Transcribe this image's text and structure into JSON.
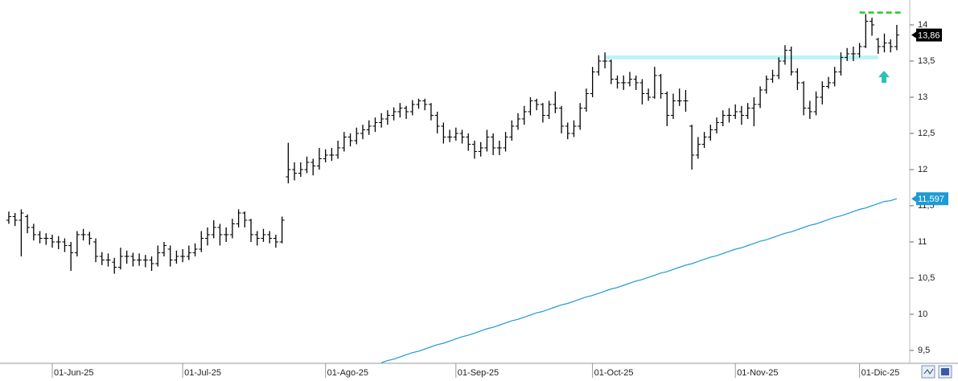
{
  "chart_data": {
    "type": "ohlc",
    "bar_color": "#000000",
    "categories": [
      null,
      null,
      null,
      null,
      null,
      null,
      null,
      "01-Jun-25",
      null,
      null,
      null,
      null,
      null,
      null,
      null,
      null,
      null,
      null,
      null,
      null,
      null,
      null,
      null,
      null,
      null,
      null,
      null,
      null,
      "01-Jul-25",
      null,
      null,
      null,
      null,
      null,
      null,
      null,
      null,
      null,
      null,
      null,
      null,
      null,
      null,
      null,
      null,
      null,
      null,
      null,
      null,
      null,
      null,
      "01-Ago-25",
      null,
      null,
      null,
      null,
      null,
      null,
      null,
      null,
      null,
      null,
      null,
      null,
      null,
      null,
      null,
      null,
      null,
      null,
      null,
      null,
      "01-Sep-25",
      null,
      null,
      null,
      null,
      null,
      null,
      null,
      null,
      null,
      null,
      null,
      null,
      null,
      null,
      null,
      null,
      null,
      null,
      null,
      null,
      null,
      "01-Oct-25",
      null,
      null,
      null,
      null,
      null,
      null,
      null,
      null,
      null,
      null,
      null,
      null,
      null,
      null,
      null,
      null,
      null,
      null,
      null,
      null,
      null,
      null,
      "01-Nov-25",
      null,
      null,
      null,
      null,
      null,
      null,
      null,
      null,
      null,
      null,
      null,
      null,
      null,
      null,
      null,
      null,
      null,
      null,
      null,
      "01-Dic-25",
      null,
      null,
      null,
      null,
      null,
      null
    ],
    "bars": [
      [
        11.3,
        11.42,
        11.25,
        11.35
      ],
      [
        11.35,
        11.4,
        11.22,
        11.3
      ],
      [
        11.3,
        11.45,
        10.8,
        11.4
      ],
      [
        11.35,
        11.38,
        11.12,
        11.2
      ],
      [
        11.2,
        11.25,
        11.02,
        11.1
      ],
      [
        11.1,
        11.15,
        10.98,
        11.05
      ],
      [
        11.05,
        11.12,
        10.96,
        11.05
      ],
      [
        11.05,
        11.1,
        10.92,
        11.0
      ],
      [
        11.0,
        11.08,
        10.9,
        11.0
      ],
      [
        11.0,
        11.05,
        10.86,
        10.95
      ],
      [
        10.95,
        11.0,
        10.6,
        10.85
      ],
      [
        10.85,
        11.15,
        10.8,
        11.1
      ],
      [
        11.1,
        11.18,
        11.02,
        11.1
      ],
      [
        11.1,
        11.14,
        10.96,
        11.05
      ],
      [
        11.0,
        11.05,
        10.72,
        10.8
      ],
      [
        10.8,
        10.86,
        10.68,
        10.75
      ],
      [
        10.75,
        10.84,
        10.66,
        10.75
      ],
      [
        10.72,
        10.78,
        10.56,
        10.65
      ],
      [
        10.65,
        10.92,
        10.62,
        10.8
      ],
      [
        10.8,
        10.88,
        10.7,
        10.8
      ],
      [
        10.8,
        10.85,
        10.66,
        10.75
      ],
      [
        10.75,
        10.84,
        10.67,
        10.75
      ],
      [
        10.75,
        10.82,
        10.65,
        10.75
      ],
      [
        10.75,
        10.8,
        10.6,
        10.7
      ],
      [
        10.7,
        10.95,
        10.66,
        10.85
      ],
      [
        10.85,
        11.0,
        10.8,
        10.95
      ],
      [
        10.9,
        10.95,
        10.66,
        10.75
      ],
      [
        10.75,
        10.88,
        10.7,
        10.8
      ],
      [
        10.8,
        10.9,
        10.72,
        10.8
      ],
      [
        10.8,
        10.95,
        10.75,
        10.85
      ],
      [
        10.85,
        10.98,
        10.8,
        10.9
      ],
      [
        10.9,
        11.15,
        10.86,
        11.05
      ],
      [
        11.05,
        11.2,
        10.95,
        11.1
      ],
      [
        11.1,
        11.3,
        11.05,
        11.2
      ],
      [
        11.2,
        11.25,
        10.95,
        11.1
      ],
      [
        11.1,
        11.2,
        11.0,
        11.1
      ],
      [
        11.1,
        11.32,
        11.05,
        11.25
      ],
      [
        11.25,
        11.45,
        11.2,
        11.4
      ],
      [
        11.4,
        11.42,
        11.2,
        11.3
      ],
      [
        11.3,
        11.32,
        11.0,
        11.1
      ],
      [
        11.1,
        11.15,
        10.95,
        11.05
      ],
      [
        11.05,
        11.18,
        11.0,
        11.1
      ],
      [
        11.1,
        11.15,
        10.98,
        11.05
      ],
      [
        11.05,
        11.1,
        10.92,
        11.0
      ],
      [
        11.0,
        11.35,
        10.98,
        11.3
      ],
      [
        11.9,
        12.37,
        11.81,
        12.0
      ],
      [
        12.0,
        12.1,
        11.85,
        11.95
      ],
      [
        11.95,
        12.1,
        11.9,
        12.0
      ],
      [
        12.0,
        12.18,
        11.95,
        12.1
      ],
      [
        12.1,
        12.15,
        11.92,
        12.05
      ],
      [
        12.05,
        12.3,
        12.0,
        12.15
      ],
      [
        12.15,
        12.28,
        12.1,
        12.2
      ],
      [
        12.2,
        12.3,
        12.12,
        12.2
      ],
      [
        12.2,
        12.4,
        12.15,
        12.3
      ],
      [
        12.3,
        12.52,
        12.25,
        12.45
      ],
      [
        12.45,
        12.5,
        12.32,
        12.4
      ],
      [
        12.4,
        12.58,
        12.35,
        12.5
      ],
      [
        12.5,
        12.62,
        12.42,
        12.55
      ],
      [
        12.55,
        12.68,
        12.48,
        12.6
      ],
      [
        12.6,
        12.72,
        12.52,
        12.65
      ],
      [
        12.65,
        12.78,
        12.58,
        12.7
      ],
      [
        12.7,
        12.82,
        12.62,
        12.75
      ],
      [
        12.75,
        12.86,
        12.68,
        12.8
      ],
      [
        12.8,
        12.92,
        12.72,
        12.85
      ],
      [
        12.85,
        12.88,
        12.7,
        12.8
      ],
      [
        12.8,
        12.96,
        12.75,
        12.9
      ],
      [
        12.9,
        12.98,
        12.84,
        12.95
      ],
      [
        12.95,
        12.98,
        12.82,
        12.9
      ],
      [
        12.9,
        12.92,
        12.68,
        12.75
      ],
      [
        12.75,
        12.8,
        12.5,
        12.6
      ],
      [
        12.6,
        12.65,
        12.36,
        12.45
      ],
      [
        12.45,
        12.55,
        12.38,
        12.45
      ],
      [
        12.45,
        12.58,
        12.4,
        12.5
      ],
      [
        12.5,
        12.55,
        12.36,
        12.45
      ],
      [
        12.45,
        12.5,
        12.26,
        12.35
      ],
      [
        12.35,
        12.4,
        12.15,
        12.25
      ],
      [
        12.25,
        12.38,
        12.18,
        12.3
      ],
      [
        12.3,
        12.55,
        12.25,
        12.45
      ],
      [
        12.45,
        12.5,
        12.2,
        12.3
      ],
      [
        12.3,
        12.4,
        12.2,
        12.3
      ],
      [
        12.3,
        12.52,
        12.25,
        12.45
      ],
      [
        12.45,
        12.68,
        12.4,
        12.6
      ],
      [
        12.6,
        12.78,
        12.55,
        12.7
      ],
      [
        12.7,
        12.88,
        12.62,
        12.8
      ],
      [
        12.8,
        13.0,
        12.75,
        12.95
      ],
      [
        12.95,
        12.98,
        12.82,
        12.9
      ],
      [
        12.9,
        12.92,
        12.65,
        12.75
      ],
      [
        12.75,
        12.95,
        12.7,
        12.9
      ],
      [
        12.9,
        13.08,
        12.78,
        12.85
      ],
      [
        12.85,
        12.88,
        12.5,
        12.6
      ],
      [
        12.6,
        12.65,
        12.42,
        12.5
      ],
      [
        12.5,
        12.68,
        12.45,
        12.6
      ],
      [
        12.6,
        12.92,
        12.55,
        12.85
      ],
      [
        12.85,
        13.12,
        12.8,
        13.05
      ],
      [
        13.05,
        13.42,
        13.0,
        13.35
      ],
      [
        13.35,
        13.58,
        13.3,
        13.5
      ],
      [
        13.5,
        13.62,
        13.4,
        13.5
      ],
      [
        13.5,
        13.52,
        13.18,
        13.25
      ],
      [
        13.25,
        13.3,
        13.12,
        13.2
      ],
      [
        13.2,
        13.3,
        13.1,
        13.2
      ],
      [
        13.2,
        13.35,
        13.15,
        13.25
      ],
      [
        13.25,
        13.3,
        13.1,
        13.2
      ],
      [
        13.2,
        13.25,
        12.9,
        13.05
      ],
      [
        13.05,
        13.12,
        12.95,
        13.0
      ],
      [
        13.0,
        13.42,
        12.98,
        13.3
      ],
      [
        13.3,
        13.32,
        12.98,
        13.05
      ],
      [
        13.05,
        13.08,
        12.6,
        12.75
      ],
      [
        12.75,
        13.05,
        12.7,
        12.95
      ],
      [
        12.95,
        13.12,
        12.88,
        12.95
      ],
      [
        12.95,
        13.1,
        12.8,
        12.95
      ],
      [
        12.6,
        12.62,
        12.0,
        12.2
      ],
      [
        12.2,
        12.45,
        12.15,
        12.35
      ],
      [
        12.35,
        12.52,
        12.3,
        12.45
      ],
      [
        12.45,
        12.62,
        12.4,
        12.55
      ],
      [
        12.55,
        12.72,
        12.5,
        12.65
      ],
      [
        12.65,
        12.82,
        12.6,
        12.75
      ],
      [
        12.75,
        12.85,
        12.65,
        12.75
      ],
      [
        12.75,
        12.9,
        12.7,
        12.8
      ],
      [
        12.8,
        12.88,
        12.62,
        12.75
      ],
      [
        12.75,
        12.92,
        12.7,
        12.85
      ],
      [
        12.85,
        13.0,
        12.6,
        12.9
      ],
      [
        12.9,
        13.15,
        12.85,
        13.1
      ],
      [
        13.1,
        13.3,
        13.05,
        13.25
      ],
      [
        13.25,
        13.38,
        13.2,
        13.3
      ],
      [
        13.3,
        13.55,
        13.25,
        13.5
      ],
      [
        13.5,
        13.72,
        13.45,
        13.65
      ],
      [
        13.65,
        13.7,
        13.3,
        13.35
      ],
      [
        13.35,
        13.4,
        13.1,
        13.2
      ],
      [
        13.2,
        13.22,
        12.75,
        12.85
      ],
      [
        12.85,
        12.95,
        12.7,
        12.8
      ],
      [
        12.8,
        13.08,
        12.75,
        13.0
      ],
      [
        13.0,
        13.22,
        12.9,
        13.15
      ],
      [
        13.15,
        13.28,
        13.12,
        13.2
      ],
      [
        13.2,
        13.42,
        13.15,
        13.35
      ],
      [
        13.35,
        13.62,
        13.3,
        13.55
      ],
      [
        13.55,
        13.68,
        13.5,
        13.6
      ],
      [
        13.6,
        13.7,
        13.5,
        13.6
      ],
      [
        13.6,
        13.75,
        13.55,
        13.7
      ],
      [
        13.7,
        14.15,
        13.68,
        14.05
      ],
      [
        14.05,
        14.1,
        13.85,
        14.0
      ],
      [
        13.8,
        13.82,
        13.6,
        13.7
      ],
      [
        13.7,
        13.88,
        13.62,
        13.75
      ],
      [
        13.75,
        13.8,
        13.62,
        13.7
      ],
      [
        13.7,
        14.0,
        13.65,
        13.86
      ]
    ],
    "moving_average": {
      "color": "#1e9ad6",
      "values": [
        null,
        null,
        null,
        null,
        null,
        null,
        null,
        null,
        null,
        null,
        null,
        null,
        null,
        null,
        null,
        null,
        null,
        null,
        null,
        null,
        null,
        null,
        null,
        null,
        null,
        null,
        null,
        null,
        null,
        null,
        null,
        null,
        null,
        null,
        null,
        null,
        null,
        null,
        null,
        null,
        null,
        null,
        null,
        null,
        null,
        null,
        null,
        null,
        null,
        null,
        null,
        null,
        null,
        null,
        null,
        null,
        null,
        null,
        null,
        null,
        9.33,
        9.36,
        9.38,
        9.41,
        9.44,
        9.47,
        9.49,
        9.52,
        9.55,
        9.58,
        9.6,
        9.63,
        9.66,
        9.69,
        9.71,
        9.74,
        9.77,
        9.8,
        9.82,
        9.85,
        9.88,
        9.91,
        9.93,
        9.96,
        9.99,
        10.02,
        10.04,
        10.07,
        10.1,
        10.13,
        10.15,
        10.18,
        10.21,
        10.24,
        10.26,
        10.29,
        10.32,
        10.35,
        10.37,
        10.4,
        10.43,
        10.46,
        10.48,
        10.51,
        10.54,
        10.57,
        10.59,
        10.62,
        10.65,
        10.68,
        10.7,
        10.73,
        10.76,
        10.79,
        10.81,
        10.84,
        10.87,
        10.9,
        10.92,
        10.95,
        10.98,
        11.01,
        11.03,
        11.06,
        11.09,
        11.12,
        11.14,
        11.17,
        11.2,
        11.23,
        11.25,
        11.28,
        11.31,
        11.34,
        11.36,
        11.39,
        11.42,
        11.45,
        11.47,
        11.5,
        11.53,
        11.56,
        11.57,
        11.597
      ]
    },
    "ylim": [
      9.322,
      14.344
    ],
    "yticks": [
      {
        "value": 9.5,
        "label": "9,5"
      },
      10,
      {
        "value": 10.5,
        "label": "10,5"
      },
      11,
      {
        "value": 11.5,
        "label": "11,5"
      },
      12,
      {
        "value": 12.5,
        "label": "12,5"
      },
      13,
      {
        "value": 13.5,
        "label": "13,5"
      },
      14
    ],
    "last_labels": [
      {
        "value": 13.86,
        "label": "13,86",
        "color": "#000000"
      },
      {
        "value": 11.597,
        "label": "11,597",
        "color": "#1e9ad6"
      }
    ],
    "resistance": {
      "value": 13.55,
      "from": 96,
      "to": 140,
      "color": "#bdf3f8"
    },
    "high_line": {
      "value": 14.17,
      "from": 137,
      "to": 144,
      "color": "#22cc22"
    }
  }
}
